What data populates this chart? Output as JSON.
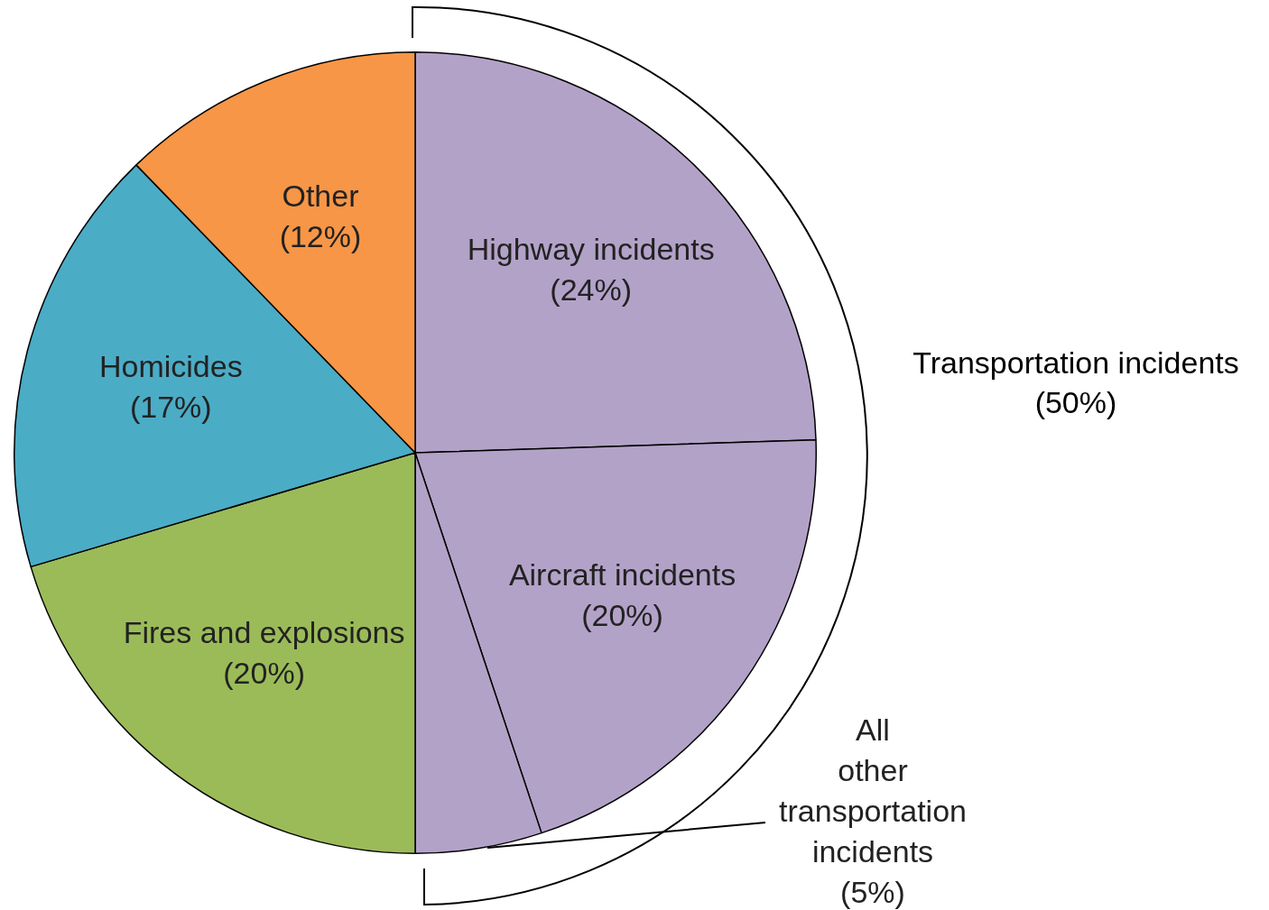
{
  "chart_data": {
    "type": "pie",
    "categories": [
      "Highway incidents",
      "Aircraft incidents",
      "All other transportation incidents",
      "Fires and explosions",
      "Homicides",
      "Other"
    ],
    "values": [
      24,
      20,
      5,
      20,
      17,
      12
    ],
    "colors": [
      "#b3a2c8",
      "#b3a2c8",
      "#b3a2c8",
      "#9bbb59",
      "#4bacc6",
      "#f79646"
    ],
    "value_labels": [
      "(24%)",
      "(20%)",
      "(5%)",
      "(20%)",
      "(17%)",
      "(12%)"
    ],
    "annotations": [
      "Transportation incidents (50%)"
    ]
  }
}
